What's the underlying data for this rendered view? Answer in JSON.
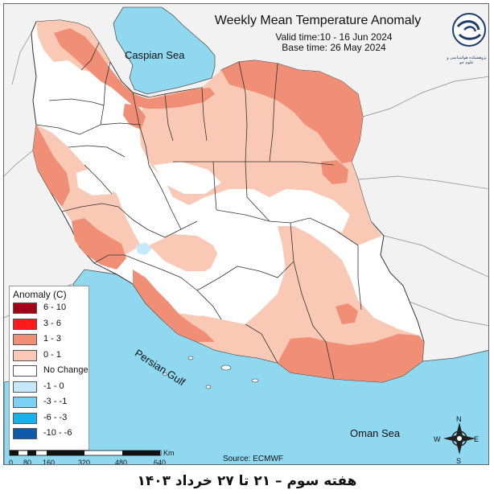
{
  "map": {
    "title": "Weekly Mean Temperature Anomaly",
    "valid_time": "Valid time:10 - 16 Jun 2024",
    "base_time": "Base time: 26 May 2024",
    "source": "Source: ECMWF",
    "footer": "هفته سوم – ۲۱ تا ۲۷ خرداد ۱۴۰۳",
    "logo_text": "پژوهشکده هواشناسی و علوم جو",
    "water_labels": {
      "caspian": "Caspian Sea",
      "gulf": "Persian Gulf",
      "oman": "Oman Sea"
    },
    "colors": {
      "water": "#8fd8f0",
      "land_outside": "#f2f2f2",
      "land_iran_base": "#ffffff",
      "anomaly_0_1": "#fac9b6",
      "anomaly_1_3": "#f08f75"
    }
  },
  "legend": {
    "title": "Anomaly (C)",
    "items": [
      {
        "label": "6 - 10",
        "color": "#a50016"
      },
      {
        "label": "3 - 6",
        "color": "#ff1a1a"
      },
      {
        "label": "1 - 3",
        "color": "#f08f75"
      },
      {
        "label": "0 - 1",
        "color": "#fac9b6"
      },
      {
        "label": "No Change",
        "color": "#ffffff"
      },
      {
        "label": "-1 - 0",
        "color": "#c6e8fb"
      },
      {
        "label": "-3 - -1",
        "color": "#7dd1f4"
      },
      {
        "label": "-6 - -3",
        "color": "#18b2ea"
      },
      {
        "label": "-10 - -6",
        "color": "#0f5aa8"
      }
    ]
  },
  "scale": {
    "unit": "Km",
    "ticks": [
      "0",
      "80",
      "160",
      "320",
      "480",
      "640"
    ]
  },
  "compass": {
    "n": "N",
    "s": "S",
    "e": "E",
    "w": "W"
  }
}
